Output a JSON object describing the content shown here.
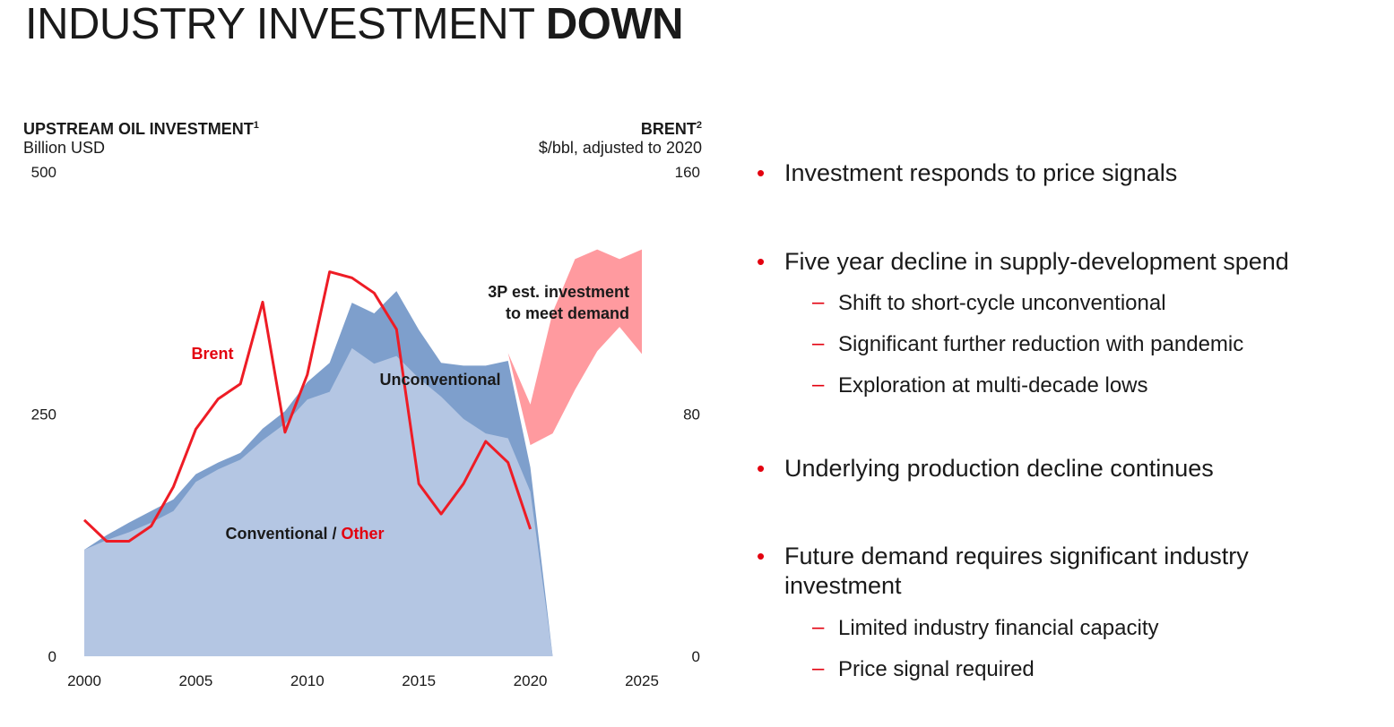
{
  "title": {
    "main": "INDUSTRY INVESTMENT",
    "accent": "DOWN"
  },
  "colors": {
    "accent_red": "#e3000f",
    "conventional": "#b4c6e3",
    "unconventional": "#7e9fcc",
    "forecast": "#ff9a9f",
    "brent_line": "#ee1c25"
  },
  "chart_data": {
    "type": "area",
    "left_axis": {
      "title": "UPSTREAM OIL INVESTMENT",
      "title_sup": "1",
      "unit": "Billion USD",
      "ticks": [
        "0",
        "250",
        "500"
      ],
      "range": [
        0,
        500
      ]
    },
    "right_axis": {
      "title": "BRENT",
      "title_sup": "2",
      "unit": "$/bbl, adjusted to 2020",
      "ticks": [
        "0",
        "80",
        "160"
      ],
      "range": [
        0,
        160
      ]
    },
    "x_ticks": [
      "2000",
      "2005",
      "2010",
      "2015",
      "2020",
      "2025"
    ],
    "x_range": [
      2000,
      2025
    ],
    "series": [
      {
        "name": "Conventional / Other",
        "axis": "left",
        "x": [
          2000,
          2001,
          2002,
          2003,
          2004,
          2005,
          2006,
          2007,
          2008,
          2009,
          2010,
          2011,
          2012,
          2013,
          2014,
          2015,
          2016,
          2017,
          2018,
          2019,
          2020,
          2021
        ],
        "values": [
          110,
          120,
          128,
          138,
          150,
          180,
          193,
          203,
          223,
          240,
          265,
          273,
          318,
          302,
          310,
          287,
          268,
          245,
          230,
          225,
          170,
          0
        ]
      },
      {
        "name": "Unconventional",
        "axis": "left",
        "x": [
          2000,
          2001,
          2002,
          2003,
          2004,
          2005,
          2006,
          2007,
          2008,
          2009,
          2010,
          2011,
          2012,
          2013,
          2014,
          2015,
          2016,
          2017,
          2018,
          2019,
          2020,
          2021
        ],
        "values": [
          0,
          5,
          10,
          12,
          12,
          8,
          7,
          7,
          12,
          13,
          18,
          30,
          47,
          52,
          67,
          50,
          35,
          55,
          70,
          80,
          25,
          0
        ]
      },
      {
        "name": "3P est. investment to meet demand",
        "axis": "left",
        "type": "range",
        "x": [
          2019,
          2020,
          2021,
          2022,
          2023,
          2024,
          2025
        ],
        "low": [
          313,
          218,
          230,
          275,
          315,
          340,
          312
        ],
        "high": [
          313,
          260,
          355,
          410,
          420,
          410,
          420
        ]
      },
      {
        "name": "Brent",
        "axis": "right",
        "type": "line",
        "x": [
          2000,
          2001,
          2002,
          2003,
          2004,
          2005,
          2006,
          2007,
          2008,
          2009,
          2010,
          2011,
          2012,
          2013,
          2014,
          2015,
          2016,
          2017,
          2018,
          2019,
          2020
        ],
        "values": [
          45,
          38,
          38,
          43,
          56,
          75,
          85,
          90,
          117,
          74,
          93,
          127,
          125,
          120,
          108,
          57,
          47,
          57,
          71,
          64,
          42
        ]
      }
    ],
    "labels": {
      "brent": "Brent",
      "unconventional": "Unconventional",
      "conventional": "Conventional",
      "conventional_sep": " / ",
      "other": "Other",
      "forecast_line1": "3P est. investment",
      "forecast_line2": "to meet demand"
    }
  },
  "bullets": [
    {
      "text": "Investment responds to price signals",
      "subs": []
    },
    {
      "text": "Five year decline in supply-development spend",
      "subs": [
        "Shift to short-cycle unconventional",
        "Significant further reduction with pandemic",
        "Exploration at multi-decade lows"
      ]
    },
    {
      "text": "Underlying production decline continues",
      "subs": []
    },
    {
      "text": "Future demand requires significant industry investment",
      "subs": [
        "Limited industry financial capacity",
        "Price signal required"
      ]
    }
  ]
}
